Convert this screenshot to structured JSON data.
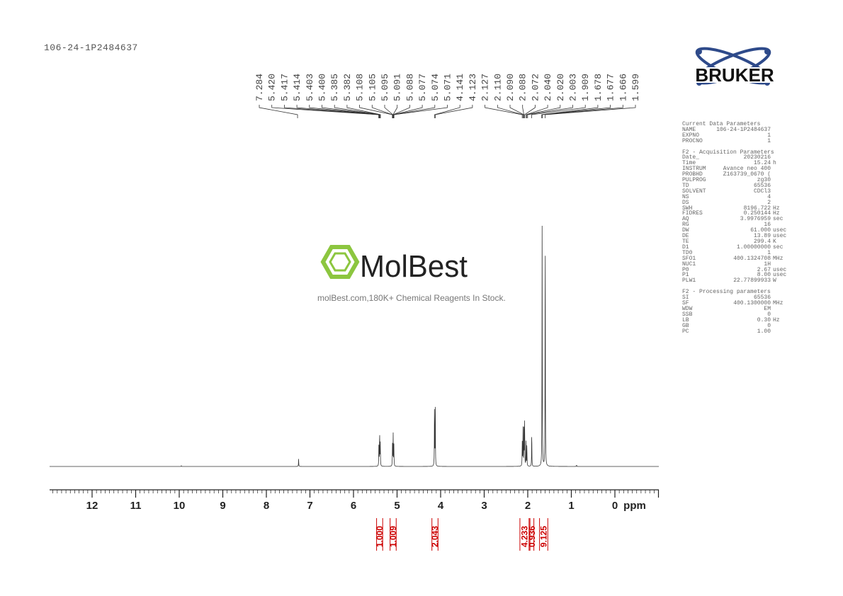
{
  "sample_name": "106-24-1P2484637",
  "logo_text": "BRUKER",
  "watermark": {
    "brand": "MolBest",
    "tagline": "molBest.com,180K+ Chemical Reagents In Stock."
  },
  "parameters": {
    "sections": [
      {
        "title": "Current Data Parameters",
        "rows": [
          [
            "NAME",
            "106-24-1P2484637",
            ""
          ],
          [
            "EXPNO",
            "1",
            ""
          ],
          [
            "PROCNO",
            "1",
            ""
          ]
        ]
      },
      {
        "title": "F2 - Acquisition Parameters",
        "rows": [
          [
            "Date_",
            "20230216",
            ""
          ],
          [
            "Time",
            "15.24",
            "h"
          ],
          [
            "INSTRUM",
            "Avance neo 400",
            ""
          ],
          [
            "PROBHD",
            "Z163739_0670 (",
            ""
          ],
          [
            "PULPROG",
            "zg30",
            ""
          ],
          [
            "TD",
            "65536",
            ""
          ],
          [
            "SOLVENT",
            "CDCl3",
            ""
          ],
          [
            "NS",
            "4",
            ""
          ],
          [
            "DS",
            "2",
            ""
          ],
          [
            "SWH",
            "8196.722",
            "Hz"
          ],
          [
            "FIDRES",
            "0.250144",
            "Hz"
          ],
          [
            "AQ",
            "3.9976959",
            "sec"
          ],
          [
            "RG",
            "16",
            ""
          ],
          [
            "DW",
            "61.000",
            "usec"
          ],
          [
            "DE",
            "13.89",
            "usec"
          ],
          [
            "TE",
            "299.4",
            "K"
          ],
          [
            "D1",
            "1.00000000",
            "sec"
          ],
          [
            "TD0",
            "1",
            ""
          ],
          [
            "SFO1",
            "400.1324708",
            "MHz"
          ],
          [
            "NUC1",
            "1H",
            ""
          ],
          [
            "P0",
            "2.67",
            "usec"
          ],
          [
            "P1",
            "8.00",
            "usec"
          ],
          [
            "PLW1",
            "22.77899933",
            "W"
          ]
        ]
      },
      {
        "title": "F2 - Processing parameters",
        "rows": [
          [
            "SI",
            "65536",
            ""
          ],
          [
            "SF",
            "400.1300000",
            "MHz"
          ],
          [
            "WDW",
            "EM",
            ""
          ],
          [
            "SSB",
            "0",
            ""
          ],
          [
            "LB",
            "0.30",
            "Hz"
          ],
          [
            "GB",
            "0",
            ""
          ],
          [
            "PC",
            "1.00",
            ""
          ]
        ]
      }
    ]
  },
  "chart_data": {
    "type": "line",
    "xlabel": "ppm",
    "xlim": [
      13,
      -1
    ],
    "x_reversed": true,
    "xticks": [
      12,
      11,
      10,
      9,
      8,
      7,
      6,
      5,
      4,
      3,
      2,
      1,
      0
    ],
    "grid": false,
    "peak_labels": [
      "7.284",
      "5.420",
      "5.417",
      "5.414",
      "5.403",
      "5.400",
      "5.385",
      "5.382",
      "5.108",
      "5.105",
      "5.095",
      "5.091",
      "5.088",
      "5.077",
      "5.074",
      "5.071",
      "4.141",
      "4.123",
      "2.127",
      "2.110",
      "2.090",
      "2.088",
      "2.072",
      "2.040",
      "2.020",
      "2.003",
      "1.909",
      "1.678",
      "1.677",
      "1.666",
      "1.599"
    ],
    "peaks": [
      {
        "ppm": 7.26,
        "height": 3
      },
      {
        "ppm": 5.417,
        "height": 10
      },
      {
        "ppm": 5.4,
        "height": 14
      },
      {
        "ppm": 5.385,
        "height": 10
      },
      {
        "ppm": 5.105,
        "height": 9
      },
      {
        "ppm": 5.09,
        "height": 13
      },
      {
        "ppm": 5.074,
        "height": 9
      },
      {
        "ppm": 4.141,
        "height": 25
      },
      {
        "ppm": 4.123,
        "height": 25
      },
      {
        "ppm": 2.127,
        "height": 10
      },
      {
        "ppm": 2.11,
        "height": 15
      },
      {
        "ppm": 2.088,
        "height": 17
      },
      {
        "ppm": 2.072,
        "height": 19
      },
      {
        "ppm": 2.04,
        "height": 10
      },
      {
        "ppm": 2.02,
        "height": 8
      },
      {
        "ppm": 1.909,
        "height": 14
      },
      {
        "ppm": 1.67,
        "height": 100
      },
      {
        "ppm": 1.599,
        "height": 98
      },
      {
        "ppm": 0.88,
        "height": 0.6
      },
      {
        "ppm": 9.95,
        "height": 0.3
      }
    ],
    "integrals": [
      {
        "from": 5.47,
        "to": 5.33,
        "value": "1.000"
      },
      {
        "from": 5.16,
        "to": 5.02,
        "value": "1.009"
      },
      {
        "from": 4.2,
        "to": 4.06,
        "value": "2.043"
      },
      {
        "from": 2.18,
        "to": 1.97,
        "value": "4.233"
      },
      {
        "from": 1.95,
        "to": 1.86,
        "value": "0.936"
      },
      {
        "from": 1.73,
        "to": 1.54,
        "value": "9.125"
      }
    ],
    "colors": {
      "spectrum": "#333333",
      "integral": "#cc0000"
    }
  }
}
